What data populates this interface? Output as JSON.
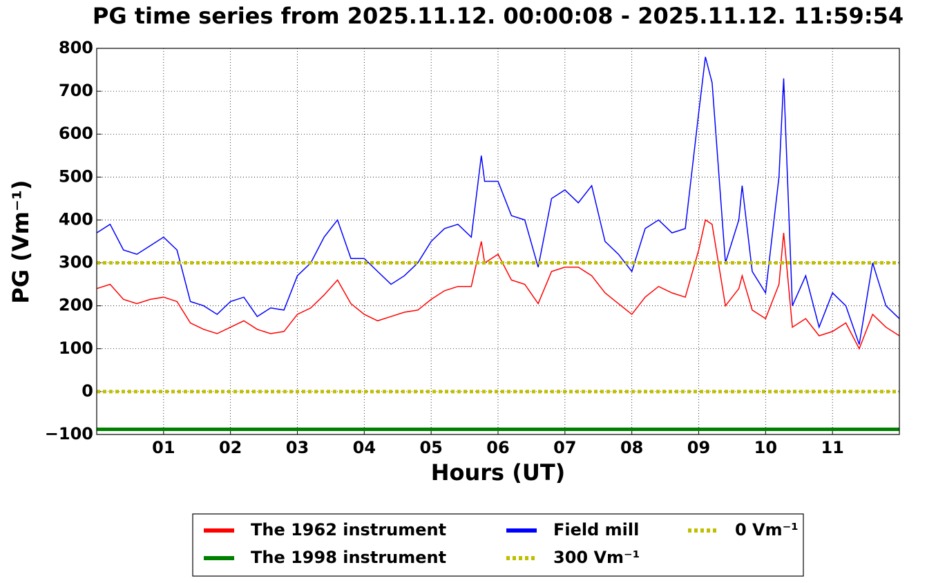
{
  "chart_data": {
    "type": "line",
    "title": "PG time series from 2025.11.12. 00:00:08 - 2025.11.12. 11:59:54",
    "x_label": "Hours (UT)",
    "y_label": "PG (Vm⁻¹)",
    "xlim": [
      0,
      12
    ],
    "xticks": [
      {
        "value": 1,
        "label": "01"
      },
      {
        "value": 2,
        "label": "02"
      },
      {
        "value": 3,
        "label": "03"
      },
      {
        "value": 4,
        "label": "04"
      },
      {
        "value": 5,
        "label": "05"
      },
      {
        "value": 6,
        "label": "06"
      },
      {
        "value": 7,
        "label": "07"
      },
      {
        "value": 8,
        "label": "08"
      },
      {
        "value": 9,
        "label": "09"
      },
      {
        "value": 10,
        "label": "10"
      },
      {
        "value": 11,
        "label": "11"
      }
    ],
    "ylim": [
      -100,
      800
    ],
    "yticks": [
      {
        "value": -100,
        "label": "−100"
      },
      0,
      100,
      200,
      300,
      400,
      500,
      600,
      700,
      800
    ],
    "grid": true,
    "x": [
      0,
      0.2,
      0.4,
      0.6,
      0.8,
      1,
      1.2,
      1.4,
      1.6,
      1.8,
      2,
      2.2,
      2.4,
      2.6,
      2.8,
      3,
      3.2,
      3.4,
      3.6,
      3.8,
      4,
      4.2,
      4.4,
      4.6,
      4.8,
      5,
      5.2,
      5.4,
      5.6,
      5.75,
      5.8,
      6,
      6.2,
      6.4,
      6.6,
      6.8,
      7,
      7.2,
      7.4,
      7.6,
      7.8,
      8,
      8.2,
      8.4,
      8.6,
      8.8,
      9,
      9.1,
      9.2,
      9.4,
      9.6,
      9.65,
      9.8,
      10,
      10.2,
      10.27,
      10.4,
      10.6,
      10.8,
      11,
      11.2,
      11.4,
      11.6,
      11.8,
      12
    ],
    "series": [
      {
        "name": "The 1962 instrument",
        "color": "#ff0000",
        "values": [
          240,
          250,
          215,
          205,
          215,
          220,
          210,
          160,
          145,
          135,
          150,
          165,
          145,
          135,
          140,
          180,
          195,
          225,
          260,
          205,
          180,
          165,
          175,
          185,
          190,
          215,
          235,
          245,
          245,
          350,
          300,
          320,
          260,
          250,
          205,
          280,
          290,
          290,
          270,
          230,
          205,
          180,
          220,
          245,
          230,
          220,
          330,
          400,
          390,
          200,
          240,
          270,
          190,
          170,
          250,
          370,
          150,
          170,
          130,
          140,
          160,
          100,
          180,
          150,
          130
        ]
      },
      {
        "name": "The 1998 instrument",
        "color": "#008000",
        "x": [
          0,
          12
        ],
        "values": [
          -88,
          -88
        ]
      },
      {
        "name": "Field mill",
        "color": "#0000ff",
        "values": [
          370,
          390,
          330,
          320,
          340,
          360,
          330,
          210,
          200,
          180,
          210,
          220,
          175,
          195,
          190,
          270,
          300,
          360,
          400,
          310,
          310,
          280,
          250,
          270,
          300,
          350,
          380,
          390,
          360,
          550,
          490,
          490,
          410,
          400,
          290,
          450,
          470,
          440,
          480,
          350,
          320,
          280,
          380,
          400,
          370,
          380,
          650,
          780,
          720,
          300,
          400,
          480,
          280,
          230,
          500,
          730,
          200,
          270,
          150,
          230,
          200,
          110,
          300,
          200,
          170
        ]
      }
    ],
    "hlines": [
      {
        "name": "300 Vm⁻¹",
        "value": 300,
        "color": "#bfbf00"
      },
      {
        "name": "0 Vm⁻¹",
        "value": 0,
        "color": "#bfbf00"
      }
    ],
    "legend": "bottom"
  }
}
